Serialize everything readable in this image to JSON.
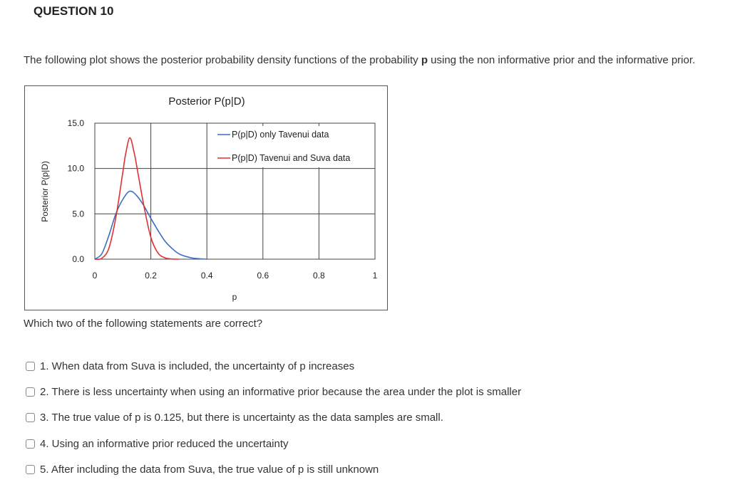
{
  "question": {
    "title": "QUESTION 10",
    "intro_before": "The following plot shows the posterior probability density functions of the probability ",
    "intro_bold": "p",
    "intro_after": " using the non informative prior and the informative prior.",
    "prompt": "Which two of the following statements are correct?"
  },
  "options": [
    "1. When data from Suva is included, the uncertainty of p increases",
    "2. There is less uncertainty when using an informative prior because the area under the plot is smaller",
    "3. The true value of p is 0.125, but there is uncertainty as the data samples are small.",
    "4. Using an informative prior reduced the uncertainty",
    "5. After including the data from Suva, the true value of p is still unknown"
  ],
  "chart_data": {
    "type": "line",
    "title": "Posterior P(p|D)",
    "xlabel": "p",
    "ylabel": "Posterior P(p|D)",
    "xlim": [
      0,
      1
    ],
    "ylim": [
      0,
      15
    ],
    "x_ticks": [
      0,
      0.2,
      0.4,
      0.6,
      0.8,
      1
    ],
    "x_tick_labels": [
      "0",
      "0.2",
      "0.4",
      "0.6",
      "0.8",
      "1"
    ],
    "y_ticks": [
      0,
      5,
      10,
      15
    ],
    "y_tick_labels": [
      "0.0",
      "5.0",
      "10.0",
      "15.0"
    ],
    "grid": true,
    "legend_position": "top-right",
    "series": [
      {
        "name": "P(p|D) only Tavenui data",
        "color": "#3a6fc4",
        "x": [
          0.0,
          0.025,
          0.05,
          0.075,
          0.1,
          0.125,
          0.15,
          0.175,
          0.2,
          0.225,
          0.25,
          0.275,
          0.3,
          0.325,
          0.35,
          0.375,
          0.4
        ],
        "y": [
          0.0,
          0.6,
          2.6,
          5.0,
          6.6,
          7.5,
          7.0,
          5.9,
          4.5,
          3.2,
          2.0,
          1.2,
          0.6,
          0.3,
          0.12,
          0.05,
          0.0
        ]
      },
      {
        "name": "P(p|D) Tavenui and Suva data",
        "color": "#e03030",
        "x": [
          0.0,
          0.025,
          0.05,
          0.075,
          0.1,
          0.11,
          0.125,
          0.14,
          0.15,
          0.175,
          0.2,
          0.225,
          0.25,
          0.275,
          0.3
        ],
        "y": [
          0.0,
          0.1,
          1.2,
          4.6,
          9.6,
          11.6,
          13.4,
          11.8,
          10.2,
          5.9,
          2.4,
          0.7,
          0.15,
          0.02,
          0.0
        ]
      }
    ]
  }
}
